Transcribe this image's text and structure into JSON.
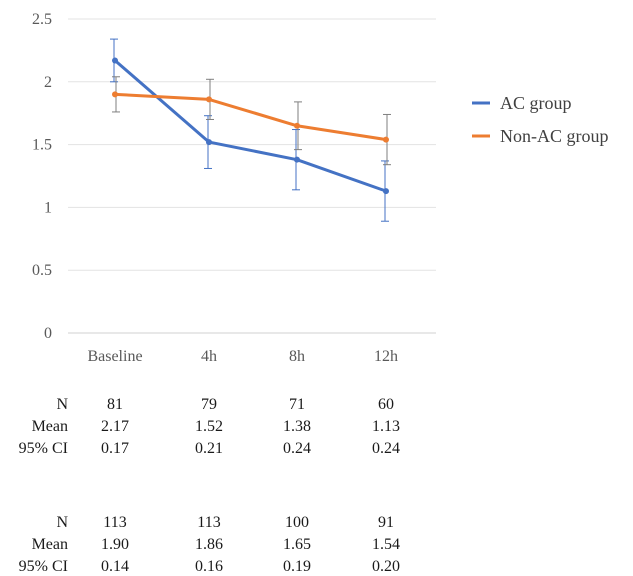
{
  "chart_data": {
    "type": "line",
    "categories": [
      "Baseline",
      "4h",
      "8h",
      "12h"
    ],
    "ylim": [
      0,
      2.5
    ],
    "yticks": [
      "0",
      "0.5",
      "1",
      "1.5",
      "2",
      "2.5"
    ],
    "grid": true,
    "legend_position": "right",
    "series": [
      {
        "name": "AC group",
        "color": "#4472C4",
        "values": [
          2.17,
          1.52,
          1.38,
          1.13
        ],
        "ci": [
          0.17,
          0.21,
          0.24,
          0.24
        ]
      },
      {
        "name": "Non-AC group",
        "color": "#ED7D31",
        "values": [
          1.9,
          1.86,
          1.65,
          1.54
        ],
        "ci": [
          0.14,
          0.16,
          0.19,
          0.2
        ]
      }
    ]
  },
  "table": {
    "groups": [
      {
        "rows": [
          {
            "label": "N",
            "values": [
              "81",
              "79",
              "71",
              "60"
            ]
          },
          {
            "label": "Mean",
            "values": [
              "2.17",
              "1.52",
              "1.38",
              "1.13"
            ]
          },
          {
            "label": "95% CI",
            "values": [
              "0.17",
              "0.21",
              "0.24",
              "0.24"
            ]
          }
        ]
      },
      {
        "rows": [
          {
            "label": "N",
            "values": [
              "113",
              "113",
              "100",
              "91"
            ]
          },
          {
            "label": "Mean",
            "values": [
              "1.90",
              "1.86",
              "1.65",
              "1.54"
            ]
          },
          {
            "label": "95% CI",
            "values": [
              "0.14",
              "0.16",
              "0.19",
              "0.20"
            ]
          }
        ]
      }
    ]
  }
}
